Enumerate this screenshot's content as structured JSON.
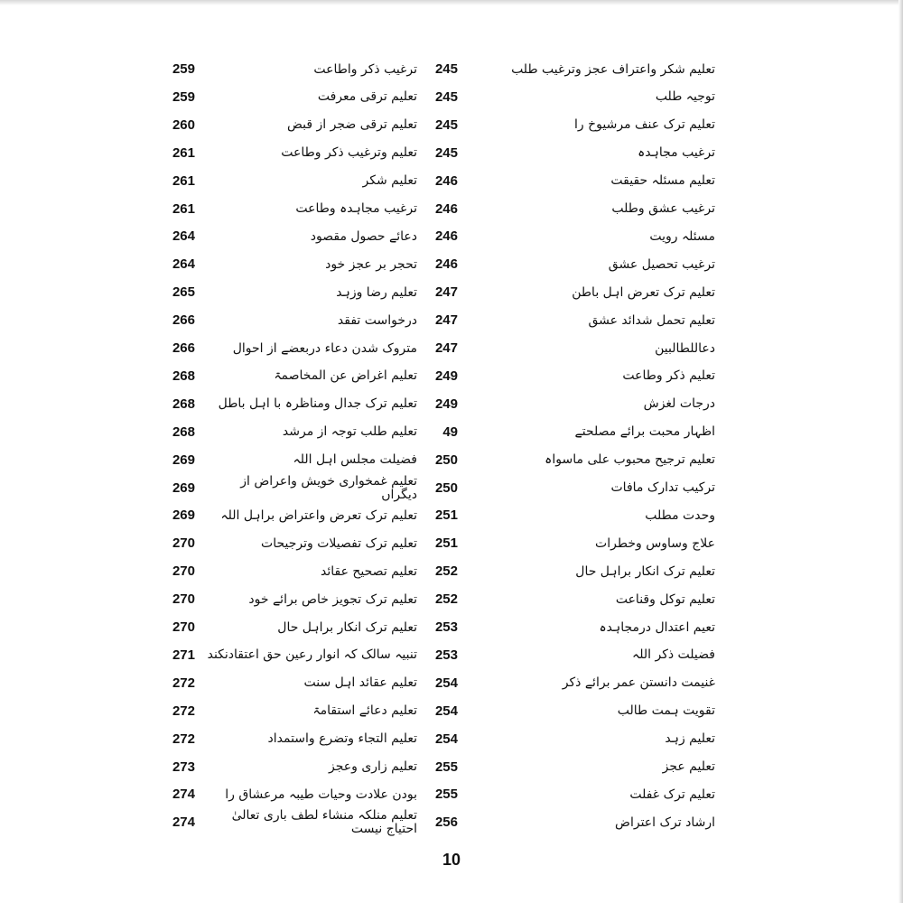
{
  "right_column": [
    {
      "title": "تعلیم شکر واعتراف عجز وترغیب طلب",
      "page": "245"
    },
    {
      "title": "توجیہ طلب",
      "page": "245"
    },
    {
      "title": "تعلیم ترک عنف مرشیوخ را",
      "page": "245"
    },
    {
      "title": "ترغیب مجاہدہ",
      "page": "245"
    },
    {
      "title": "تعلیم مسئلہ حقیقت",
      "page": "246"
    },
    {
      "title": "ترغیب عشق وطلب",
      "page": "246"
    },
    {
      "title": "مسئلہ رویت",
      "page": "246"
    },
    {
      "title": "ترغیب تحصیل عشق",
      "page": "246"
    },
    {
      "title": "تعلیم ترک تعرض اہل باطن",
      "page": "247"
    },
    {
      "title": "تعلیم تحمل شدائد عشق",
      "page": "247"
    },
    {
      "title": "دعاللطالبین",
      "page": "247"
    },
    {
      "title": "تعلیم ذکر وطاعت",
      "page": "249"
    },
    {
      "title": "درجات لغزش",
      "page": "249"
    },
    {
      "title": "اظہار محبت برائے مصلحتے",
      "page": "49"
    },
    {
      "title": "تعلیم ترجیح محبوب علی ماسواہ",
      "page": "250"
    },
    {
      "title": "ترکیب تدارک مافات",
      "page": "250"
    },
    {
      "title": "وحدت مطلب",
      "page": "251"
    },
    {
      "title": "علاج وساوس وخطرات",
      "page": "251"
    },
    {
      "title": "تعلیم ترک انکار براہل حال",
      "page": "252"
    },
    {
      "title": "تعلیم توکل وقناعت",
      "page": "252"
    },
    {
      "title": "تعیم اعتدال درمجاہدہ",
      "page": "253"
    },
    {
      "title": "فضیلت ذکر اللہ",
      "page": "253"
    },
    {
      "title": "غنیمت دانستن عمر برائے ذکر",
      "page": "254"
    },
    {
      "title": "تقویت ہمت طالب",
      "page": "254"
    },
    {
      "title": "تعلیم زہد",
      "page": "254"
    },
    {
      "title": "تعلیم عجز",
      "page": "255"
    },
    {
      "title": "تعلیم ترک غفلت",
      "page": "255"
    },
    {
      "title": "ارشاد ترک اعتراض",
      "page": "256"
    }
  ],
  "left_column": [
    {
      "title": "ترغیب ذکر واطاعت",
      "page": "259"
    },
    {
      "title": "تعلیم ترقی معرفت",
      "page": "259"
    },
    {
      "title": "تعلیم ترقی ضجر از قبض",
      "page": "260"
    },
    {
      "title": "تعلیم وترغیب ذکر وطاعت",
      "page": "261"
    },
    {
      "title": "تعلیم شکر",
      "page": "261"
    },
    {
      "title": "ترغیب مجاہدہ وطاعت",
      "page": "261"
    },
    {
      "title": "دعائے حصول مقصود",
      "page": "264"
    },
    {
      "title": "تحجر بر عجز خود",
      "page": "264"
    },
    {
      "title": "تعلیم رضا وزہد",
      "page": "265"
    },
    {
      "title": "درخواست تفقد",
      "page": "266"
    },
    {
      "title": "متروک شدن دعاء دربعضے از احوال",
      "page": "266"
    },
    {
      "title": "تعلیم اغراض عن المخاصمۃ",
      "page": "268"
    },
    {
      "title": "تعلیم ترک جدال ومناظرہ با اہل باطل",
      "page": "268"
    },
    {
      "title": "تعلیم طلب توجہ از مرشد",
      "page": "268"
    },
    {
      "title": "فضیلت مجلس اہل اللہ",
      "page": "269"
    },
    {
      "title": "تعلیم غمخواری خویش واعراض از دیگراں",
      "page": "269"
    },
    {
      "title": "تعلیم ترک تعرض واعتراض براہل اللہ",
      "page": "269"
    },
    {
      "title": "تعلیم ترک تفصیلات وترجیحات",
      "page": "270"
    },
    {
      "title": "تعلیم تصحیح عقائد",
      "page": "270"
    },
    {
      "title": "تعلیم ترک تجویز خاص برائے خود",
      "page": "270"
    },
    {
      "title": "تعلیم ترک انکار براہل حال",
      "page": "270"
    },
    {
      "title": "تنبیہ سالک کہ انوار رعین حق اعتقادنکند",
      "page": "271"
    },
    {
      "title": "تعلیم عقائد اہل سنت",
      "page": "272"
    },
    {
      "title": "تعلیم دعائے استقامۃ",
      "page": "272"
    },
    {
      "title": "تعلیم التجاء وتضرع واستمداد",
      "page": "272"
    },
    {
      "title": "تعلیم زاری وعجز",
      "page": "273"
    },
    {
      "title": "بودن علادت وحیات طیبہ مرعشاق را",
      "page": "274"
    },
    {
      "title": "تعلیم منلکہ منشاء لطف باری تعالیٰ احتیاج نیست",
      "page": "274"
    }
  ],
  "footer": {
    "page_number": "10"
  }
}
